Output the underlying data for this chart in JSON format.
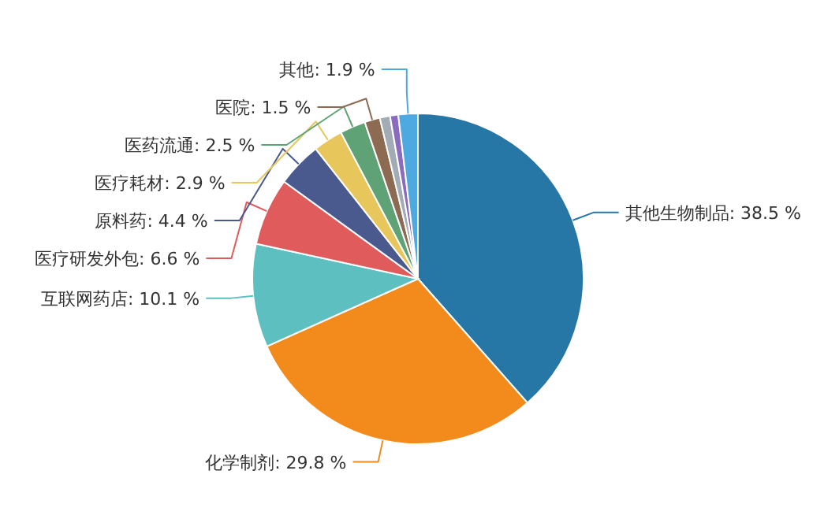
{
  "chart_data": {
    "type": "pie",
    "categories": [
      "其他生物制品",
      "化学制剂",
      "互联网药店",
      "医疗研发外包",
      "原料药",
      "医疗耗材",
      "医药流通",
      "医院",
      null,
      null,
      "其他"
    ],
    "values": [
      38.5,
      29.8,
      10.1,
      6.6,
      4.4,
      2.9,
      2.5,
      1.5,
      1.0,
      0.8,
      1.9
    ],
    "value_labels": [
      "38.5 %",
      "29.8 %",
      "10.1 %",
      "6.6 %",
      "4.4 %",
      "2.9 %",
      "2.5 %",
      "1.5 %",
      null,
      null,
      "1.9 %"
    ],
    "colors": [
      "#2777a6",
      "#f28b1c",
      "#5dbfc0",
      "#e05b5b",
      "#4b5a8e",
      "#e7c65b",
      "#5ea275",
      "#8c6b52",
      "#a3abb5",
      "#8a6bbd",
      "#4ea9e0"
    ]
  }
}
